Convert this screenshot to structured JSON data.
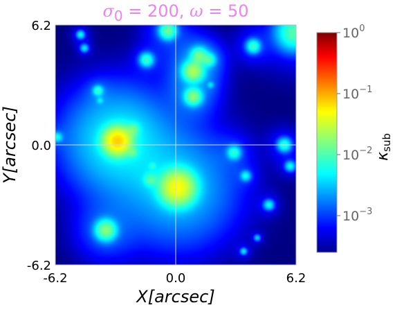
{
  "chart_data": {
    "type": "heatmap",
    "title": "σ0 = 200, ω = 50",
    "title_parts": {
      "sigma": "σ",
      "sub": "0",
      "eq1": " = 200, ",
      "omega": "ω",
      "eq2": " = 50"
    },
    "xlabel": "X[arcsec]",
    "ylabel": "Y[arcsec]",
    "xlim": [
      -6.2,
      6.2
    ],
    "ylim": [
      -6.2,
      6.2
    ],
    "x_ticks": [
      {
        "value": -6.2,
        "label": "-6.2"
      },
      {
        "value": 0.0,
        "label": "0.0"
      },
      {
        "value": 6.2,
        "label": "6.2"
      }
    ],
    "y_ticks": [
      {
        "value": 6.2,
        "label": "6.2"
      },
      {
        "value": 0.0,
        "label": "0.0"
      },
      {
        "value": -6.2,
        "label": "-6.2"
      }
    ],
    "crosshair": [
      0.0,
      0.0
    ],
    "colormap": "jet",
    "colorbar": {
      "label": "κsub",
      "label_parts": {
        "kappa": "κ",
        "sub": "sub"
      },
      "scale": "log",
      "range": [
        0.00025,
        1.0
      ],
      "ticks": [
        {
          "value": 1.0,
          "base": "10",
          "exp": "0"
        },
        {
          "value": 0.1,
          "base": "10",
          "exp": "−1"
        },
        {
          "value": 0.01,
          "base": "10",
          "exp": "−2"
        },
        {
          "value": 0.001,
          "base": "10",
          "exp": "−3"
        }
      ]
    },
    "halos": [
      {
        "x": 0.1,
        "y": -2.2,
        "peak": 0.04,
        "core": 0.5,
        "halo": 1.8
      },
      {
        "x": -3.0,
        "y": 0.2,
        "peak": 0.06,
        "core": 0.4,
        "halo": 1.6
      },
      {
        "x": -3.6,
        "y": -4.4,
        "peak": 0.015,
        "core": 0.3,
        "halo": 1.0
      },
      {
        "x": 0.9,
        "y": 3.8,
        "peak": 0.02,
        "core": 0.3,
        "halo": 0.9
      },
      {
        "x": 1.2,
        "y": 4.6,
        "peak": 0.012,
        "core": 0.25,
        "halo": 0.7
      },
      {
        "x": 0.9,
        "y": 2.5,
        "peak": 0.015,
        "core": 0.25,
        "halo": 0.8
      },
      {
        "x": -0.4,
        "y": 5.9,
        "peak": 0.012,
        "core": 0.25,
        "halo": 0.8
      },
      {
        "x": 6.1,
        "y": 5.8,
        "peak": 0.01,
        "core": 0.5,
        "halo": 1.2
      },
      {
        "x": 4.0,
        "y": 5.1,
        "peak": 0.008,
        "core": 0.2,
        "halo": 0.6
      },
      {
        "x": 1.7,
        "y": 4.4,
        "peak": 0.008,
        "core": 0.2,
        "halo": 0.5
      },
      {
        "x": -1.5,
        "y": 4.4,
        "peak": 0.008,
        "core": 0.2,
        "halo": 0.5
      },
      {
        "x": -2.2,
        "y": 0.8,
        "peak": 0.008,
        "core": 0.2,
        "halo": 0.5
      },
      {
        "x": -4.0,
        "y": 2.8,
        "peak": 0.007,
        "core": 0.15,
        "halo": 0.4
      },
      {
        "x": -2.2,
        "y": -0.4,
        "peak": 0.006,
        "core": 0.15,
        "halo": 0.4
      },
      {
        "x": -1.3,
        "y": -1.8,
        "peak": 0.007,
        "core": 0.2,
        "halo": 0.5
      },
      {
        "x": 3.0,
        "y": -0.4,
        "peak": 0.007,
        "core": 0.2,
        "halo": 0.6
      },
      {
        "x": 5.6,
        "y": 0.0,
        "peak": 0.007,
        "core": 0.2,
        "halo": 0.6
      },
      {
        "x": 5.9,
        "y": -1.1,
        "peak": 0.005,
        "core": 0.15,
        "halo": 0.4
      },
      {
        "x": 3.6,
        "y": -1.6,
        "peak": 0.005,
        "core": 0.15,
        "halo": 0.4
      },
      {
        "x": 4.8,
        "y": -3.1,
        "peak": 0.005,
        "core": 0.15,
        "halo": 0.4
      },
      {
        "x": -6.1,
        "y": 0.4,
        "peak": 0.005,
        "core": 0.15,
        "halo": 0.4
      },
      {
        "x": -4.9,
        "y": 5.7,
        "peak": 0.005,
        "core": 0.12,
        "halo": 0.35
      },
      {
        "x": -4.7,
        "y": 5.0,
        "peak": 0.004,
        "core": 0.12,
        "halo": 0.3
      },
      {
        "x": -1.2,
        "y": -1.1,
        "peak": 0.004,
        "core": 0.1,
        "halo": 0.3
      },
      {
        "x": 1.8,
        "y": 3.1,
        "peak": 0.003,
        "core": 0.1,
        "halo": 0.3
      },
      {
        "x": 3.5,
        "y": -5.5,
        "peak": 0.004,
        "core": 0.1,
        "halo": 0.3
      },
      {
        "x": 4.2,
        "y": -4.8,
        "peak": 0.003,
        "core": 0.1,
        "halo": 0.25
      },
      {
        "x": -3.9,
        "y": 2.3,
        "peak": 0.003,
        "core": 0.1,
        "halo": 0.25
      }
    ]
  }
}
